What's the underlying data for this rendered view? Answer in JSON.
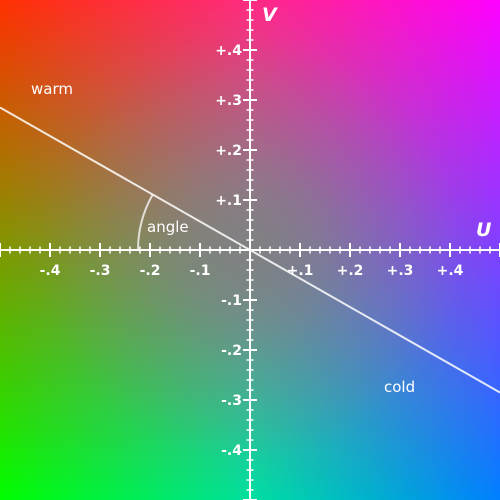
{
  "axes": {
    "u_label": "U",
    "v_label": "V",
    "range": [
      -0.5,
      0.5
    ],
    "major_step": 0.1,
    "minor_step": 0.02,
    "u_ticks": [
      "-.4",
      "-.3",
      "-.2",
      "-.1",
      "+.1",
      "+.2",
      "+.3",
      "+.4"
    ],
    "v_ticks": [
      "+.4",
      "+.3",
      "+.2",
      "+.1",
      "-.1",
      "-.2",
      "-.3",
      "-.4"
    ]
  },
  "line": {
    "slope": -0.57,
    "description_points": {
      "u_start": -0.5,
      "v_start": 0.285,
      "u_end": 0.5,
      "v_end": -0.285
    }
  },
  "labels": {
    "warm": "warm",
    "cold": "cold",
    "angle": "angle"
  },
  "colors": {
    "top_left": "#ff3000",
    "top_right": "#ff00ff",
    "bottom_left": "#00ff00",
    "bottom_right": "#0080ff",
    "center": "#808080",
    "axis": "#ffffff"
  }
}
